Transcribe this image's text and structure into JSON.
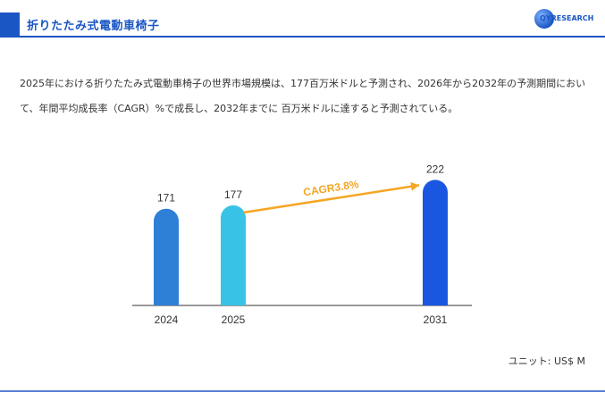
{
  "header": {
    "title": "折りたたみ式電動車椅子",
    "logo_text": "QYRESEARCH"
  },
  "intro_text": "2025年における折りたたみ式電動車椅子の世界市場規模は、177百万米ドルと予測され、2026年から2032年の予測期間において、年間平均成長率（CAGR）%で成長し、2032年までに 百万米ドルに達すると予測されている。",
  "unit_label": "ユニット: US$ M",
  "chart_data": {
    "type": "bar",
    "categories": [
      "2024",
      "2025",
      "2031"
    ],
    "values": [
      171,
      177,
      222
    ],
    "colors": [
      "#2e7fd6",
      "#38c3e6",
      "#1a56e0"
    ],
    "annotation": {
      "text": "CAGR3.8%",
      "from_category": "2025",
      "to_category": "2031",
      "color": "#f5a623"
    },
    "ylim": [
      0,
      240
    ],
    "grid": false
  }
}
